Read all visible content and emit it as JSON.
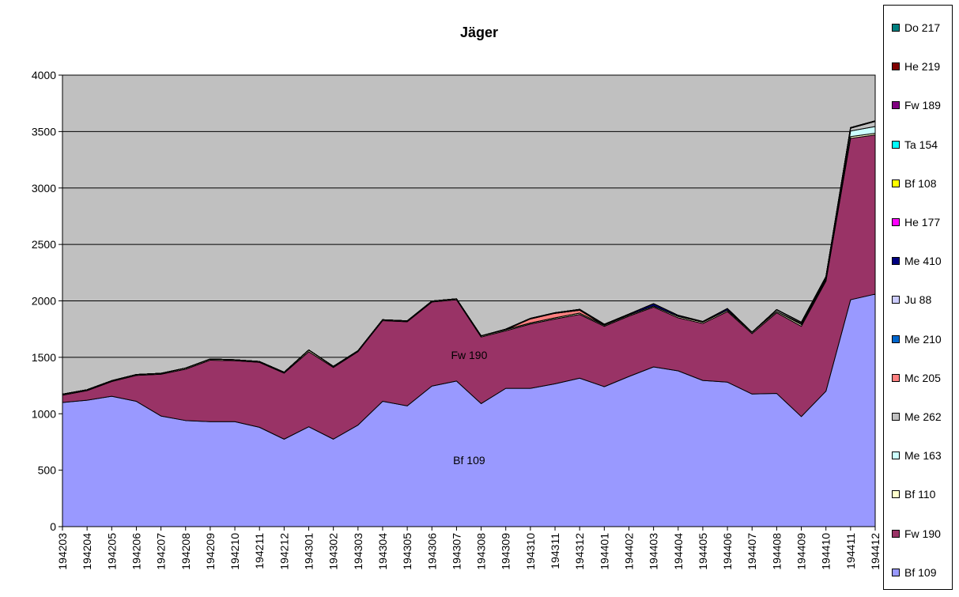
{
  "chart_data": {
    "type": "area",
    "stacked": true,
    "title": "Jäger",
    "xlabel": "",
    "ylabel": "",
    "ylim": [
      0,
      4000
    ],
    "yticks": [
      0,
      500,
      1000,
      1500,
      2000,
      2500,
      3000,
      3500,
      4000
    ],
    "grid": true,
    "plot_background": "#c0c0c0",
    "legend_position": "right",
    "categories": [
      "194203",
      "194204",
      "194205",
      "194206",
      "194207",
      "194208",
      "194209",
      "194210",
      "194211",
      "194212",
      "194301",
      "194302",
      "194303",
      "194304",
      "194305",
      "194306",
      "194307",
      "194308",
      "194309",
      "194310",
      "194311",
      "194312",
      "194401",
      "194402",
      "194403",
      "194404",
      "194405",
      "194406",
      "194407",
      "194408",
      "194409",
      "194410",
      "194411",
      "194412"
    ],
    "series": [
      {
        "name": "Bf 109",
        "color": "#9999ff",
        "values": [
          1100,
          1120,
          1155,
          1110,
          980,
          940,
          930,
          930,
          880,
          775,
          885,
          775,
          900,
          1110,
          1070,
          1245,
          1290,
          1090,
          1225,
          1225,
          1265,
          1315,
          1240,
          1330,
          1415,
          1380,
          1295,
          1280,
          1175,
          1180,
          975,
          1200,
          2010,
          2060
        ]
      },
      {
        "name": "Fw 190",
        "color": "#993366",
        "values": [
          65,
          85,
          130,
          230,
          370,
          455,
          545,
          540,
          575,
          585,
          665,
          635,
          650,
          715,
          745,
          745,
          720,
          590,
          510,
          570,
          575,
          565,
          535,
          535,
          530,
          470,
          505,
          625,
          535,
          715,
          800,
          975,
          1430,
          1410
        ]
      },
      {
        "name": "Bf 110",
        "color": "#ffffcc",
        "values": [
          8,
          8,
          8,
          8,
          8,
          10,
          10,
          8,
          8,
          8,
          15,
          10,
          8,
          8,
          8,
          8,
          8,
          10,
          10,
          10,
          10,
          12,
          10,
          10,
          10,
          12,
          12,
          12,
          12,
          12,
          15,
          15,
          15,
          15
        ]
      },
      {
        "name": "Me 163",
        "color": "#ccffff",
        "values": [
          0,
          0,
          0,
          0,
          0,
          0,
          0,
          0,
          0,
          0,
          0,
          0,
          0,
          0,
          0,
          0,
          0,
          0,
          0,
          0,
          0,
          0,
          0,
          0,
          0,
          0,
          0,
          0,
          0,
          0,
          10,
          10,
          50,
          60
        ]
      },
      {
        "name": "Me 262",
        "color": "#c0c0c0",
        "values": [
          0,
          0,
          0,
          0,
          0,
          0,
          0,
          0,
          0,
          0,
          0,
          0,
          0,
          0,
          0,
          0,
          0,
          0,
          0,
          0,
          0,
          0,
          0,
          0,
          0,
          0,
          0,
          0,
          0,
          15,
          10,
          10,
          25,
          45
        ]
      },
      {
        "name": "Mc 205",
        "color": "#ff8080",
        "values": [
          0,
          0,
          0,
          0,
          0,
          0,
          0,
          0,
          0,
          0,
          0,
          0,
          0,
          0,
          0,
          0,
          0,
          0,
          0,
          35,
          40,
          25,
          0,
          0,
          0,
          0,
          0,
          0,
          0,
          0,
          0,
          0,
          0,
          0
        ]
      },
      {
        "name": "Me 210",
        "color": "#0066cc",
        "values": [
          0,
          0,
          0,
          0,
          0,
          0,
          0,
          0,
          0,
          0,
          0,
          0,
          0,
          0,
          0,
          0,
          0,
          0,
          0,
          0,
          0,
          0,
          0,
          0,
          0,
          0,
          0,
          0,
          0,
          0,
          0,
          0,
          0,
          0
        ]
      },
      {
        "name": "Ju 88",
        "color": "#ccccff",
        "values": [
          0,
          0,
          0,
          0,
          0,
          0,
          0,
          0,
          0,
          0,
          0,
          0,
          0,
          0,
          0,
          0,
          0,
          0,
          0,
          0,
          0,
          0,
          0,
          0,
          0,
          0,
          0,
          0,
          0,
          0,
          0,
          0,
          0,
          0
        ]
      },
      {
        "name": "Me 410",
        "color": "#000080",
        "values": [
          0,
          0,
          0,
          0,
          0,
          0,
          0,
          0,
          0,
          0,
          0,
          0,
          0,
          0,
          0,
          0,
          0,
          0,
          5,
          5,
          5,
          8,
          8,
          8,
          20,
          10,
          5,
          15,
          0,
          0,
          0,
          5,
          5,
          5
        ]
      },
      {
        "name": "He 177",
        "color": "#ff00ff",
        "values": [
          0,
          0,
          0,
          0,
          0,
          0,
          0,
          0,
          0,
          0,
          0,
          0,
          0,
          0,
          0,
          0,
          0,
          0,
          0,
          0,
          0,
          0,
          0,
          0,
          0,
          0,
          0,
          0,
          0,
          0,
          0,
          0,
          0,
          0
        ]
      },
      {
        "name": "Bf 108",
        "color": "#ffff00",
        "values": [
          0,
          0,
          0,
          0,
          0,
          0,
          0,
          0,
          0,
          0,
          0,
          0,
          0,
          0,
          0,
          0,
          0,
          0,
          0,
          0,
          0,
          0,
          0,
          0,
          0,
          0,
          0,
          0,
          0,
          0,
          0,
          0,
          0,
          0
        ]
      },
      {
        "name": "Ta 154",
        "color": "#00ffff",
        "values": [
          0,
          0,
          0,
          0,
          0,
          0,
          0,
          0,
          0,
          0,
          0,
          0,
          0,
          0,
          0,
          0,
          0,
          0,
          0,
          0,
          0,
          0,
          0,
          0,
          0,
          0,
          0,
          0,
          0,
          0,
          0,
          0,
          0,
          0
        ]
      },
      {
        "name": "Fw 189",
        "color": "#800080",
        "values": [
          0,
          0,
          0,
          0,
          0,
          0,
          0,
          0,
          0,
          0,
          0,
          0,
          0,
          0,
          0,
          0,
          0,
          0,
          0,
          0,
          0,
          0,
          0,
          0,
          0,
          0,
          0,
          0,
          0,
          0,
          0,
          0,
          0,
          0
        ]
      },
      {
        "name": "He 219",
        "color": "#800000",
        "values": [
          0,
          0,
          0,
          0,
          0,
          0,
          0,
          0,
          0,
          0,
          0,
          0,
          0,
          0,
          0,
          0,
          0,
          0,
          0,
          0,
          0,
          0,
          0,
          0,
          0,
          0,
          0,
          0,
          0,
          0,
          0,
          0,
          0,
          0
        ]
      },
      {
        "name": "Do 217",
        "color": "#008080",
        "values": [
          0,
          0,
          0,
          0,
          0,
          0,
          0,
          0,
          0,
          0,
          0,
          0,
          0,
          0,
          0,
          0,
          0,
          0,
          0,
          0,
          0,
          0,
          0,
          0,
          0,
          0,
          0,
          0,
          0,
          0,
          0,
          0,
          0,
          0
        ]
      }
    ],
    "legend_order": [
      "Do 217",
      "He 219",
      "Fw 189",
      "Ta 154",
      "Bf 108",
      "He 177",
      "Me 410",
      "Ju 88",
      "Me 210",
      "Mc 205",
      "Me 262",
      "Me 163",
      "Bf 110",
      "Fw 190",
      "Bf 109"
    ],
    "annotations": [
      {
        "text": "Fw 190",
        "x": "194307",
        "y": 1520
      },
      {
        "text": "Bf 109",
        "x": "194307",
        "y": 590
      }
    ]
  }
}
